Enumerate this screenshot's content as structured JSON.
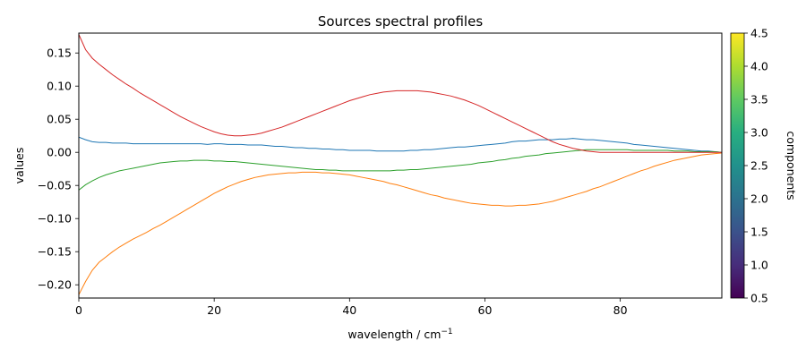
{
  "chart_data": {
    "type": "line",
    "title": "Sources spectral profiles",
    "xlabel": "wavelength / cm",
    "xlabel_superscript": "−1",
    "ylabel": "values",
    "xlim": [
      0,
      95
    ],
    "ylim": [
      -0.22,
      0.18
    ],
    "x_ticks": [
      0,
      20,
      40,
      60,
      80
    ],
    "y_ticks": [
      -0.2,
      -0.15,
      -0.1,
      -0.05,
      0.0,
      0.05,
      0.1,
      0.15
    ],
    "grid": false,
    "colorbar": {
      "label": "components",
      "colormap": "viridis",
      "range": [
        0.5,
        4.5
      ],
      "ticks": [
        0.5,
        1.0,
        1.5,
        2.0,
        2.5,
        3.0,
        3.5,
        4.0,
        4.5
      ]
    },
    "x": [
      0,
      1,
      2,
      3,
      4,
      5,
      6,
      7,
      8,
      9,
      10,
      11,
      12,
      13,
      14,
      15,
      16,
      17,
      18,
      19,
      20,
      21,
      22,
      23,
      24,
      25,
      26,
      27,
      28,
      29,
      30,
      31,
      32,
      33,
      34,
      35,
      36,
      37,
      38,
      39,
      40,
      41,
      42,
      43,
      44,
      45,
      46,
      47,
      48,
      49,
      50,
      51,
      52,
      53,
      54,
      55,
      56,
      57,
      58,
      59,
      60,
      61,
      62,
      63,
      64,
      65,
      66,
      67,
      68,
      69,
      70,
      71,
      72,
      73,
      74,
      75,
      76,
      77,
      78,
      79,
      80,
      81,
      82,
      83,
      84,
      85,
      86,
      87,
      88,
      89,
      90,
      91,
      92,
      93,
      94,
      95
    ],
    "series": [
      {
        "color": "#1f77b4",
        "values": [
          0.023,
          0.019,
          0.016,
          0.015,
          0.015,
          0.014,
          0.014,
          0.014,
          0.013,
          0.013,
          0.013,
          0.013,
          0.013,
          0.013,
          0.013,
          0.013,
          0.013,
          0.013,
          0.013,
          0.012,
          0.013,
          0.013,
          0.012,
          0.012,
          0.012,
          0.011,
          0.011,
          0.011,
          0.01,
          0.009,
          0.009,
          0.008,
          0.007,
          0.007,
          0.006,
          0.006,
          0.005,
          0.005,
          0.004,
          0.004,
          0.003,
          0.003,
          0.003,
          0.003,
          0.002,
          0.002,
          0.002,
          0.002,
          0.002,
          0.003,
          0.003,
          0.004,
          0.004,
          0.005,
          0.006,
          0.007,
          0.008,
          0.008,
          0.009,
          0.01,
          0.011,
          0.012,
          0.013,
          0.014,
          0.016,
          0.017,
          0.017,
          0.018,
          0.019,
          0.019,
          0.019,
          0.02,
          0.02,
          0.021,
          0.02,
          0.019,
          0.019,
          0.018,
          0.017,
          0.016,
          0.015,
          0.014,
          0.012,
          0.011,
          0.01,
          0.009,
          0.008,
          0.007,
          0.006,
          0.005,
          0.004,
          0.003,
          0.002,
          0.002,
          0.001,
          0.0
        ]
      },
      {
        "color": "#ff7f0e",
        "values": [
          -0.215,
          -0.195,
          -0.178,
          -0.166,
          -0.158,
          -0.15,
          -0.143,
          -0.137,
          -0.131,
          -0.126,
          -0.121,
          -0.115,
          -0.11,
          -0.104,
          -0.098,
          -0.092,
          -0.086,
          -0.08,
          -0.074,
          -0.068,
          -0.062,
          -0.057,
          -0.052,
          -0.048,
          -0.044,
          -0.041,
          -0.038,
          -0.036,
          -0.034,
          -0.033,
          -0.032,
          -0.031,
          -0.031,
          -0.03,
          -0.03,
          -0.03,
          -0.031,
          -0.031,
          -0.032,
          -0.033,
          -0.034,
          -0.036,
          -0.038,
          -0.04,
          -0.042,
          -0.044,
          -0.047,
          -0.049,
          -0.052,
          -0.055,
          -0.058,
          -0.061,
          -0.064,
          -0.066,
          -0.069,
          -0.071,
          -0.073,
          -0.075,
          -0.077,
          -0.078,
          -0.079,
          -0.08,
          -0.08,
          -0.081,
          -0.081,
          -0.08,
          -0.08,
          -0.079,
          -0.078,
          -0.076,
          -0.074,
          -0.071,
          -0.068,
          -0.065,
          -0.062,
          -0.059,
          -0.055,
          -0.052,
          -0.048,
          -0.044,
          -0.04,
          -0.036,
          -0.032,
          -0.028,
          -0.025,
          -0.021,
          -0.018,
          -0.015,
          -0.012,
          -0.01,
          -0.008,
          -0.006,
          -0.004,
          -0.003,
          -0.002,
          -0.001
        ]
      },
      {
        "color": "#2ca02c",
        "values": [
          -0.057,
          -0.049,
          -0.043,
          -0.038,
          -0.034,
          -0.031,
          -0.028,
          -0.026,
          -0.024,
          -0.022,
          -0.02,
          -0.018,
          -0.016,
          -0.015,
          -0.014,
          -0.013,
          -0.013,
          -0.012,
          -0.012,
          -0.012,
          -0.013,
          -0.013,
          -0.014,
          -0.014,
          -0.015,
          -0.016,
          -0.017,
          -0.018,
          -0.019,
          -0.02,
          -0.021,
          -0.022,
          -0.023,
          -0.024,
          -0.025,
          -0.026,
          -0.026,
          -0.027,
          -0.027,
          -0.028,
          -0.028,
          -0.028,
          -0.028,
          -0.028,
          -0.028,
          -0.028,
          -0.028,
          -0.027,
          -0.027,
          -0.026,
          -0.026,
          -0.025,
          -0.024,
          -0.023,
          -0.022,
          -0.021,
          -0.02,
          -0.019,
          -0.018,
          -0.016,
          -0.015,
          -0.014,
          -0.012,
          -0.011,
          -0.009,
          -0.008,
          -0.006,
          -0.005,
          -0.004,
          -0.002,
          -0.001,
          0.0,
          0.001,
          0.002,
          0.003,
          0.004,
          0.004,
          0.004,
          0.004,
          0.004,
          0.004,
          0.004,
          0.003,
          0.003,
          0.003,
          0.003,
          0.003,
          0.003,
          0.002,
          0.002,
          0.002,
          0.001,
          0.001,
          0.001,
          0.001,
          0.0
        ]
      },
      {
        "color": "#d62728",
        "values": [
          0.178,
          0.155,
          0.142,
          0.133,
          0.125,
          0.117,
          0.11,
          0.103,
          0.097,
          0.09,
          0.084,
          0.078,
          0.072,
          0.066,
          0.06,
          0.054,
          0.049,
          0.044,
          0.039,
          0.035,
          0.031,
          0.028,
          0.026,
          0.025,
          0.025,
          0.026,
          0.027,
          0.029,
          0.032,
          0.035,
          0.038,
          0.042,
          0.046,
          0.05,
          0.054,
          0.058,
          0.062,
          0.066,
          0.07,
          0.074,
          0.078,
          0.081,
          0.084,
          0.087,
          0.089,
          0.091,
          0.092,
          0.093,
          0.093,
          0.093,
          0.093,
          0.092,
          0.091,
          0.089,
          0.087,
          0.085,
          0.082,
          0.079,
          0.075,
          0.071,
          0.066,
          0.061,
          0.056,
          0.051,
          0.046,
          0.041,
          0.036,
          0.031,
          0.026,
          0.021,
          0.016,
          0.012,
          0.009,
          0.006,
          0.004,
          0.002,
          0.001,
          0.0,
          0.0,
          0.0,
          0.0,
          0.0,
          0.0,
          0.0,
          0.0,
          0.0,
          0.0,
          0.0,
          0.0,
          0.0,
          0.0,
          0.0,
          0.0,
          0.0,
          0.0,
          0.0
        ]
      }
    ]
  }
}
